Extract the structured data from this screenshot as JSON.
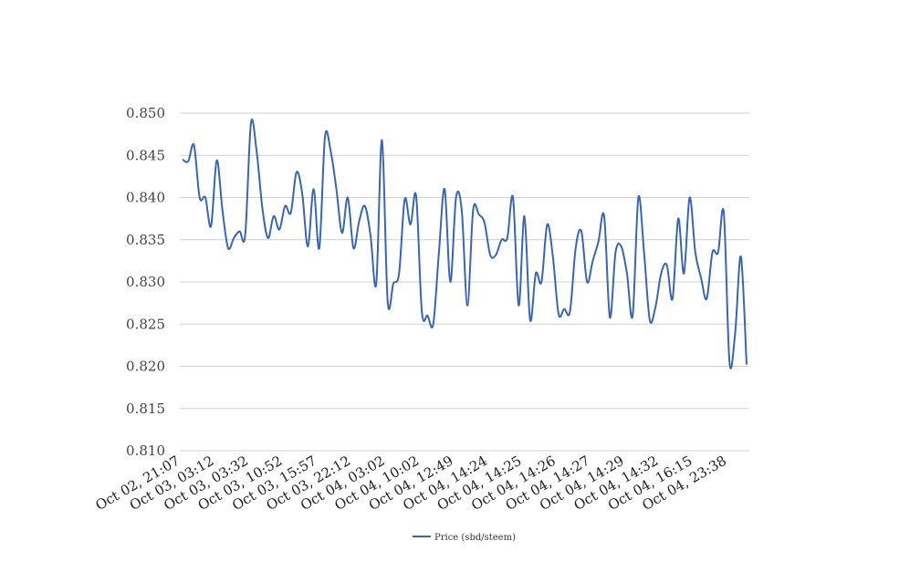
{
  "chart_data": {
    "type": "line",
    "title": "",
    "xlabel": "",
    "ylabel": "",
    "ylim": [
      0.81,
      0.85
    ],
    "yticks": [
      "0.810",
      "0.815",
      "0.820",
      "0.825",
      "0.830",
      "0.835",
      "0.840",
      "0.845",
      "0.850"
    ],
    "xticks": [
      "Oct 02, 21:07",
      "Oct 03, 03:12",
      "Oct 03, 03:32",
      "Oct 03, 10:52",
      "Oct 03, 15:57",
      "Oct 03, 22:12",
      "Oct 04, 03:02",
      "Oct 04, 10:02",
      "Oct 04, 12:49",
      "Oct 04, 14:24",
      "Oct 04, 14:25",
      "Oct 04, 14:26",
      "Oct 04, 14:27",
      "Oct 04, 14:29",
      "Oct 04, 14:32",
      "Oct 04, 16:15",
      "Oct 04, 23:38"
    ],
    "grid": true,
    "legend_position": "bottom",
    "series": [
      {
        "name": "Price (sbd/steem)",
        "color": "#3a66b0",
        "values": [
          0.8445,
          0.8443,
          0.8462,
          0.84,
          0.84,
          0.8366,
          0.8444,
          0.8385,
          0.834,
          0.8352,
          0.836,
          0.8356,
          0.8488,
          0.8455,
          0.8388,
          0.8352,
          0.8378,
          0.8362,
          0.839,
          0.8382,
          0.843,
          0.8405,
          0.8342,
          0.841,
          0.834,
          0.8472,
          0.8455,
          0.841,
          0.8358,
          0.84,
          0.834,
          0.8372,
          0.839,
          0.8355,
          0.8298,
          0.8468,
          0.8277,
          0.8298,
          0.831,
          0.8398,
          0.8368,
          0.8402,
          0.8265,
          0.826,
          0.825,
          0.8335,
          0.841,
          0.83,
          0.84,
          0.8385,
          0.8272,
          0.8385,
          0.838,
          0.837,
          0.8332,
          0.8332,
          0.835,
          0.8352,
          0.84,
          0.8272,
          0.8378,
          0.8255,
          0.831,
          0.83,
          0.8368,
          0.833,
          0.8262,
          0.8268,
          0.8265,
          0.834,
          0.836,
          0.83,
          0.8325,
          0.8348,
          0.8378,
          0.8258,
          0.8335,
          0.8342,
          0.831,
          0.826,
          0.84,
          0.8335,
          0.8255,
          0.827,
          0.831,
          0.832,
          0.828,
          0.8375,
          0.831,
          0.84,
          0.8335,
          0.8305,
          0.828,
          0.8335,
          0.8335,
          0.8382,
          0.8205,
          0.824,
          0.833,
          0.8202
        ]
      }
    ]
  }
}
